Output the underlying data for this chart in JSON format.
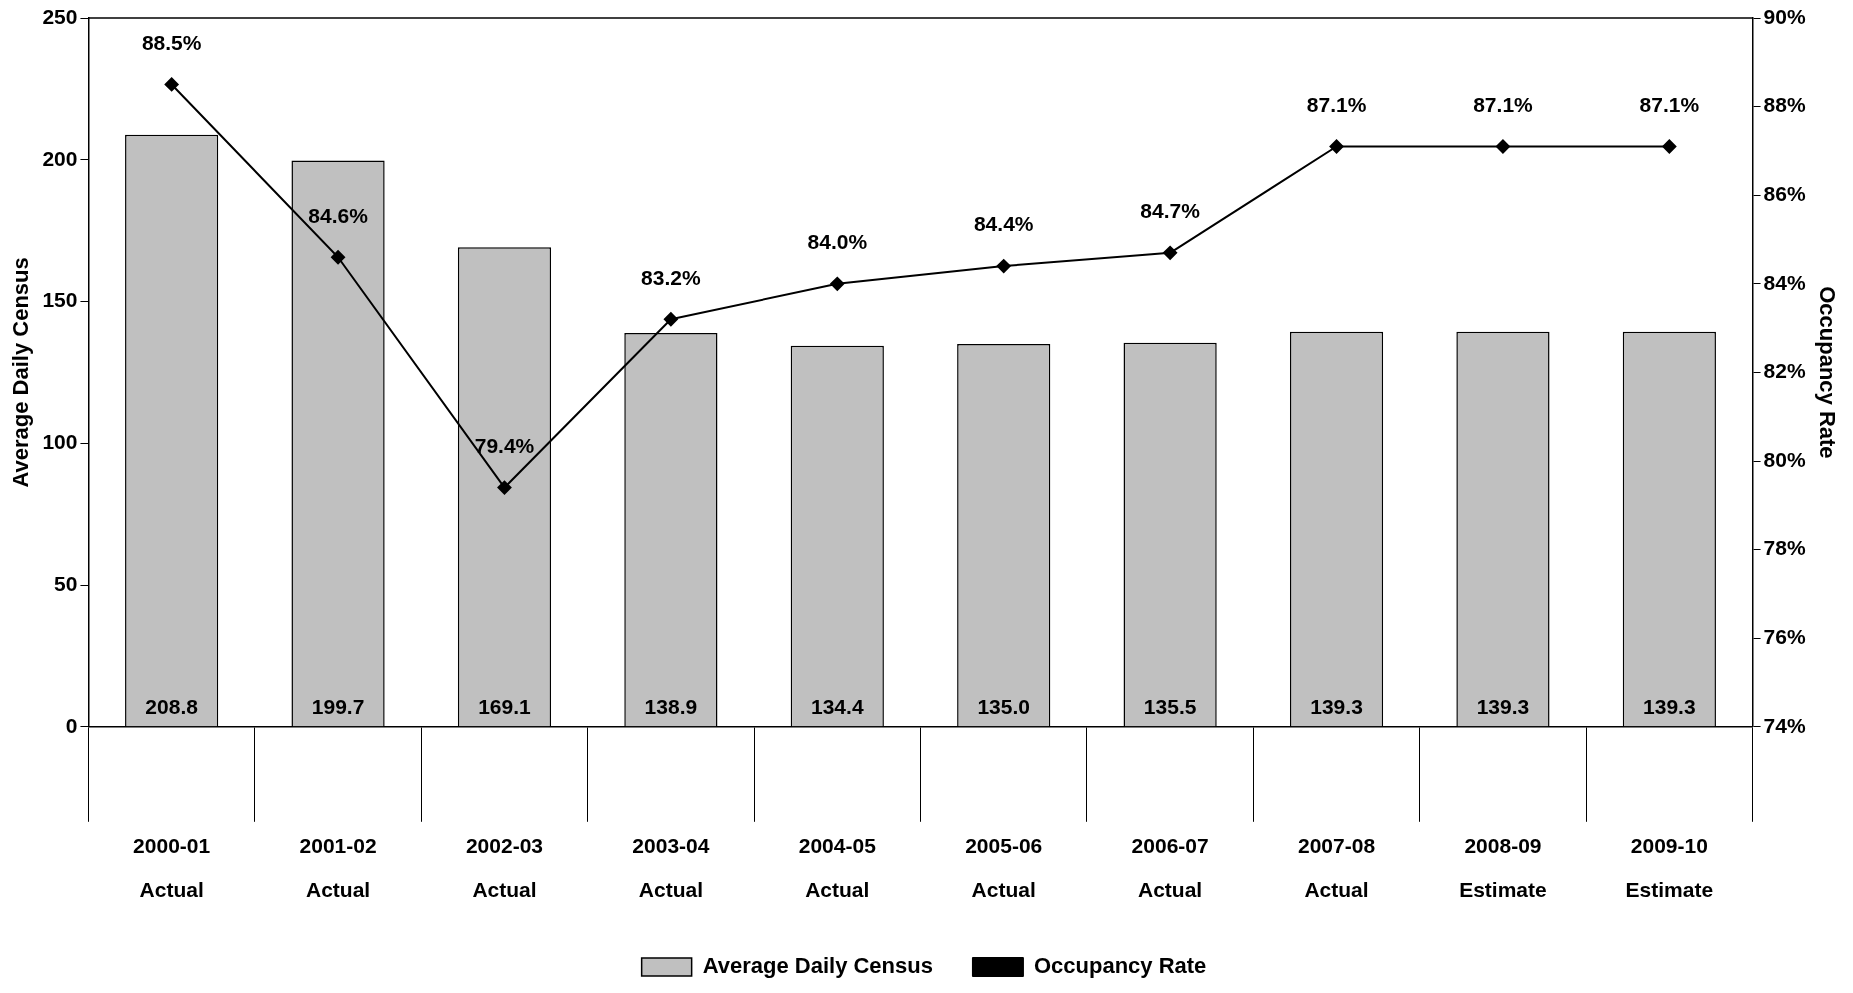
{
  "chart_data": {
    "type": "bar",
    "ylabel": "Average Daily Census",
    "y2label": "Occupancy Rate",
    "categories": [
      "2000-01\nActual",
      "2001-02\nActual",
      "2002-03\nActual",
      "2003-04\nActual",
      "2004-05\nActual",
      "2005-06\nActual",
      "2006-07\nActual",
      "2007-08\nActual",
      "2008-09\nEstimate",
      "2009-10\nEstimate"
    ],
    "series": [
      {
        "name": "Average Daily Census",
        "color": "#c0c0c0",
        "values": [
          208.8,
          199.7,
          169.1,
          138.9,
          134.4,
          135.0,
          135.5,
          139.3,
          139.3,
          139.3
        ],
        "value_labels": [
          "208.8",
          "199.7",
          "169.1",
          "138.9",
          "134.4",
          "135.0",
          "135.5",
          "139.3",
          "139.3",
          "139.3"
        ]
      },
      {
        "name": "Occupancy Rate",
        "type": "line",
        "axis": "y2",
        "color": "#000000",
        "values": [
          88.5,
          84.6,
          79.4,
          83.2,
          84.0,
          84.4,
          84.7,
          87.1,
          87.1,
          87.1
        ],
        "value_labels": [
          "88.5%",
          "84.6%",
          "79.4%",
          "83.2%",
          "84.0%",
          "84.4%",
          "84.7%",
          "87.1%",
          "87.1%",
          "87.1%"
        ]
      }
    ],
    "ylim": [
      0,
      250
    ],
    "yticks": [
      0,
      50,
      100,
      150,
      200,
      250
    ],
    "y2lim": [
      74,
      90
    ],
    "y2ticks": [
      {
        "value": 74,
        "label": "74%"
      },
      {
        "value": 76,
        "label": "76%"
      },
      {
        "value": 78,
        "label": "78%"
      },
      {
        "value": 80,
        "label": "80%"
      },
      {
        "value": 82,
        "label": "82%"
      },
      {
        "value": 84,
        "label": "84%"
      },
      {
        "value": 86,
        "label": "86%"
      },
      {
        "value": 88,
        "label": "88%"
      },
      {
        "value": 90,
        "label": "90%"
      }
    ],
    "grid": false,
    "legend": "bottom",
    "marker": "diamond",
    "line_style": "solid"
  }
}
